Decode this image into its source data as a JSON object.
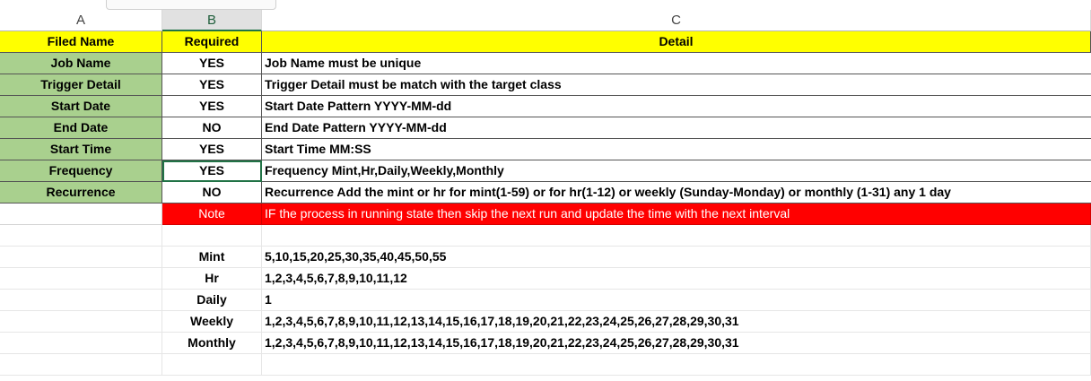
{
  "columns": [
    "A",
    "B",
    "C"
  ],
  "selected_column": "B",
  "header": {
    "a": "Filed Name",
    "b": "Required",
    "c": "Detail"
  },
  "fields": [
    {
      "name": "Job Name",
      "required": "YES",
      "detail": "Job Name must be unique"
    },
    {
      "name": "Trigger Detail",
      "required": "YES",
      "detail": "Trigger Detail must be match with the target class"
    },
    {
      "name": "Start Date",
      "required": "YES",
      "detail": "Start Date Pattern YYYY-MM-dd"
    },
    {
      "name": "End Date",
      "required": "NO",
      "detail": "End Date Pattern YYYY-MM-dd"
    },
    {
      "name": "Start Time",
      "required": "YES",
      "detail": "Start Time MM:SS"
    },
    {
      "name": "Frequency",
      "required": "YES",
      "detail": "Frequency Mint,Hr,Daily,Weekly,Monthly"
    },
    {
      "name": "Recurrence",
      "required": "NO",
      "detail": "Recurrence Add the mint or hr for mint(1-59) or for hr(1-12) or weekly (Sunday-Monday) or monthly (1-31) any 1 day"
    }
  ],
  "note": {
    "label": "Note",
    "text": "IF the process in running state then skip the next run and update the time with the next interval"
  },
  "frequency_values": [
    {
      "label": "Mint",
      "values": "5,10,15,20,25,30,35,40,45,50,55"
    },
    {
      "label": "Hr",
      "values": "1,2,3,4,5,6,7,8,9,10,11,12"
    },
    {
      "label": "Daily",
      "values": "1"
    },
    {
      "label": "Weekly",
      "values": "1,2,3,4,5,6,7,8,9,10,11,12,13,14,15,16,17,18,19,20,21,22,23,24,25,26,27,28,29,30,31"
    },
    {
      "label": "Monthly",
      "values": "1,2,3,4,5,6,7,8,9,10,11,12,13,14,15,16,17,18,19,20,21,22,23,24,25,26,27,28,29,30,31"
    }
  ],
  "colors": {
    "header_fill": "#ffff00",
    "field_fill": "#a9d08e",
    "note_fill": "#ff0000",
    "selection": "#217346"
  }
}
